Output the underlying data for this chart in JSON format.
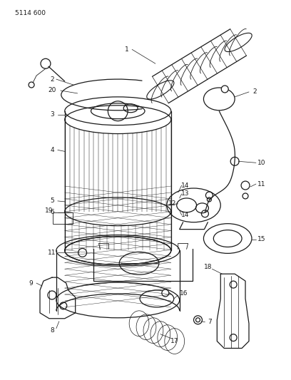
{
  "title": "5114 600",
  "bg": "#ffffff",
  "lc": "#1a1a1a",
  "figsize": [
    4.08,
    5.33
  ],
  "dpi": 100
}
